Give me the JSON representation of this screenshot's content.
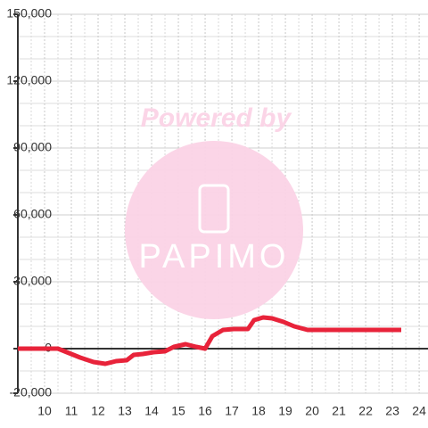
{
  "chart_data": {
    "type": "line",
    "annotations": [
      "Powered by",
      "PAPIMO"
    ],
    "x": [
      9.0,
      10.5,
      10.83,
      11.33,
      11.83,
      12.27,
      12.67,
      13.07,
      13.33,
      13.67,
      14.07,
      14.5,
      14.83,
      15.27,
      15.67,
      16.0,
      16.27,
      16.67,
      17.07,
      17.6,
      17.83,
      18.17,
      18.5,
      18.93,
      19.33,
      19.83,
      23.33
    ],
    "series": [
      {
        "color": "#e8233a",
        "values": [
          0,
          0,
          -1600,
          -4000,
          -6000,
          -6800,
          -5600,
          -5200,
          -2800,
          -2400,
          -1600,
          -1200,
          800,
          2000,
          800,
          0,
          5600,
          8400,
          8800,
          8800,
          12800,
          14000,
          13600,
          12000,
          10000,
          8400,
          8400
        ]
      }
    ],
    "xlim": [
      9,
      24.33
    ],
    "xticks": [
      10,
      11,
      12,
      13,
      14,
      15,
      16,
      17,
      18,
      19,
      20,
      21,
      22,
      23,
      24
    ],
    "ylim": [
      -20000,
      150000
    ],
    "yticks": [
      {
        "value": -20000,
        "label": "-20,000"
      },
      0,
      {
        "value": 30000,
        "label": "30,000"
      },
      {
        "value": 60000,
        "label": "60,000"
      },
      {
        "value": 90000,
        "label": "90,000"
      },
      {
        "value": 120000,
        "label": "120,000"
      },
      {
        "value": 150000,
        "label": "150,000"
      }
    ],
    "grid": true
  }
}
